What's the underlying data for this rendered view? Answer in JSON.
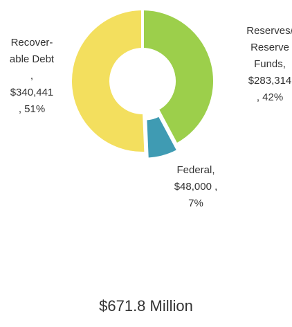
{
  "chart_data": {
    "type": "donut",
    "categories": [
      [
        "Reserves/",
        "Reserve",
        "Funds,"
      ],
      [
        "Federal,"
      ],
      [
        "Recover-",
        "able Debt",
        ","
      ]
    ],
    "values": [
      283314,
      48000,
      340441
    ],
    "value_labels": [
      "$283,314",
      "$48,000 ,",
      "$340,441"
    ],
    "percents": [
      42,
      7,
      51
    ],
    "percent_labels": [
      ", 42%",
      "7%",
      ", 51%"
    ],
    "colors": [
      "#9ccf4b",
      "#3f9bb3",
      "#f3df5e"
    ],
    "exploded": [
      false,
      true,
      false
    ],
    "total_label": "$671.8 Million"
  }
}
